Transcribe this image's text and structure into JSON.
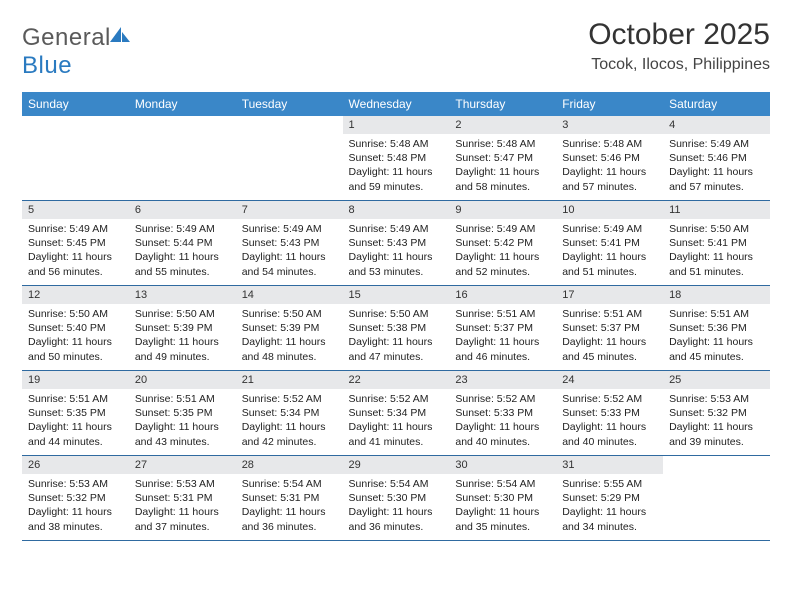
{
  "logo": {
    "word1": "General",
    "word2": "Blue",
    "sail_color": "#2a7ac0",
    "text_gray": "#5a5a5a"
  },
  "title": "October 2025",
  "location": "Tocok, Ilocos, Philippines",
  "header_bg": "#3a87c8",
  "daynum_bg": "#e7e8ea",
  "rule_color": "#2f6aa0",
  "weekdays": [
    "Sunday",
    "Monday",
    "Tuesday",
    "Wednesday",
    "Thursday",
    "Friday",
    "Saturday"
  ],
  "weeks": [
    [
      null,
      null,
      null,
      {
        "n": "1",
        "sr": "5:48 AM",
        "ss": "5:48 PM",
        "dl": "11 hours and 59 minutes."
      },
      {
        "n": "2",
        "sr": "5:48 AM",
        "ss": "5:47 PM",
        "dl": "11 hours and 58 minutes."
      },
      {
        "n": "3",
        "sr": "5:48 AM",
        "ss": "5:46 PM",
        "dl": "11 hours and 57 minutes."
      },
      {
        "n": "4",
        "sr": "5:49 AM",
        "ss": "5:46 PM",
        "dl": "11 hours and 57 minutes."
      }
    ],
    [
      {
        "n": "5",
        "sr": "5:49 AM",
        "ss": "5:45 PM",
        "dl": "11 hours and 56 minutes."
      },
      {
        "n": "6",
        "sr": "5:49 AM",
        "ss": "5:44 PM",
        "dl": "11 hours and 55 minutes."
      },
      {
        "n": "7",
        "sr": "5:49 AM",
        "ss": "5:43 PM",
        "dl": "11 hours and 54 minutes."
      },
      {
        "n": "8",
        "sr": "5:49 AM",
        "ss": "5:43 PM",
        "dl": "11 hours and 53 minutes."
      },
      {
        "n": "9",
        "sr": "5:49 AM",
        "ss": "5:42 PM",
        "dl": "11 hours and 52 minutes."
      },
      {
        "n": "10",
        "sr": "5:49 AM",
        "ss": "5:41 PM",
        "dl": "11 hours and 51 minutes."
      },
      {
        "n": "11",
        "sr": "5:50 AM",
        "ss": "5:41 PM",
        "dl": "11 hours and 51 minutes."
      }
    ],
    [
      {
        "n": "12",
        "sr": "5:50 AM",
        "ss": "5:40 PM",
        "dl": "11 hours and 50 minutes."
      },
      {
        "n": "13",
        "sr": "5:50 AM",
        "ss": "5:39 PM",
        "dl": "11 hours and 49 minutes."
      },
      {
        "n": "14",
        "sr": "5:50 AM",
        "ss": "5:39 PM",
        "dl": "11 hours and 48 minutes."
      },
      {
        "n": "15",
        "sr": "5:50 AM",
        "ss": "5:38 PM",
        "dl": "11 hours and 47 minutes."
      },
      {
        "n": "16",
        "sr": "5:51 AM",
        "ss": "5:37 PM",
        "dl": "11 hours and 46 minutes."
      },
      {
        "n": "17",
        "sr": "5:51 AM",
        "ss": "5:37 PM",
        "dl": "11 hours and 45 minutes."
      },
      {
        "n": "18",
        "sr": "5:51 AM",
        "ss": "5:36 PM",
        "dl": "11 hours and 45 minutes."
      }
    ],
    [
      {
        "n": "19",
        "sr": "5:51 AM",
        "ss": "5:35 PM",
        "dl": "11 hours and 44 minutes."
      },
      {
        "n": "20",
        "sr": "5:51 AM",
        "ss": "5:35 PM",
        "dl": "11 hours and 43 minutes."
      },
      {
        "n": "21",
        "sr": "5:52 AM",
        "ss": "5:34 PM",
        "dl": "11 hours and 42 minutes."
      },
      {
        "n": "22",
        "sr": "5:52 AM",
        "ss": "5:34 PM",
        "dl": "11 hours and 41 minutes."
      },
      {
        "n": "23",
        "sr": "5:52 AM",
        "ss": "5:33 PM",
        "dl": "11 hours and 40 minutes."
      },
      {
        "n": "24",
        "sr": "5:52 AM",
        "ss": "5:33 PM",
        "dl": "11 hours and 40 minutes."
      },
      {
        "n": "25",
        "sr": "5:53 AM",
        "ss": "5:32 PM",
        "dl": "11 hours and 39 minutes."
      }
    ],
    [
      {
        "n": "26",
        "sr": "5:53 AM",
        "ss": "5:32 PM",
        "dl": "11 hours and 38 minutes."
      },
      {
        "n": "27",
        "sr": "5:53 AM",
        "ss": "5:31 PM",
        "dl": "11 hours and 37 minutes."
      },
      {
        "n": "28",
        "sr": "5:54 AM",
        "ss": "5:31 PM",
        "dl": "11 hours and 36 minutes."
      },
      {
        "n": "29",
        "sr": "5:54 AM",
        "ss": "5:30 PM",
        "dl": "11 hours and 36 minutes."
      },
      {
        "n": "30",
        "sr": "5:54 AM",
        "ss": "5:30 PM",
        "dl": "11 hours and 35 minutes."
      },
      {
        "n": "31",
        "sr": "5:55 AM",
        "ss": "5:29 PM",
        "dl": "11 hours and 34 minutes."
      },
      null
    ]
  ],
  "labels": {
    "sunrise": "Sunrise:",
    "sunset": "Sunset:",
    "daylight": "Daylight:"
  }
}
